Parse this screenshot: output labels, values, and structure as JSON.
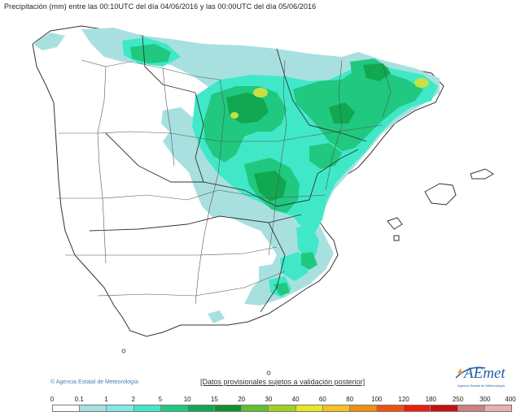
{
  "title": "Precipitación (mm) entre las 00:10UTC del día 04/06/2016 y las 00:00UTC del día 05/06/2016",
  "copyright": "Agencia Estatal de Meteorología",
  "disclaimer": "[Datos provisionales sujetos a validación posterior]",
  "logo": {
    "text": "AEmet",
    "subtitle": "Agencia Estatal de Meteorología"
  },
  "legend": {
    "labels": [
      "0",
      "0.1",
      "1",
      "2",
      "5",
      "10",
      "15",
      "20",
      "30",
      "40",
      "60",
      "80",
      "100",
      "120",
      "180",
      "250",
      "300",
      "400"
    ],
    "colors": [
      "#ffffff",
      "#a8e0e0",
      "#7fe8e8",
      "#40e8c8",
      "#20c880",
      "#10a850",
      "#109030",
      "#60c030",
      "#a0d020",
      "#e8e820",
      "#f8c020",
      "#f09010",
      "#f05010",
      "#e82010",
      "#c81010",
      "#d08080",
      "#e8b0b0"
    ]
  },
  "map": {
    "land_color": "#ffffff",
    "border_color": "#333333",
    "province_border_color": "#888888",
    "rain_colors": {
      "light": "#a8e0e0",
      "cyan": "#7fe8e8",
      "aqua": "#40e8c8",
      "green": "#20c880",
      "dark_green": "#10a850",
      "yellow_green": "#c8e040"
    }
  }
}
